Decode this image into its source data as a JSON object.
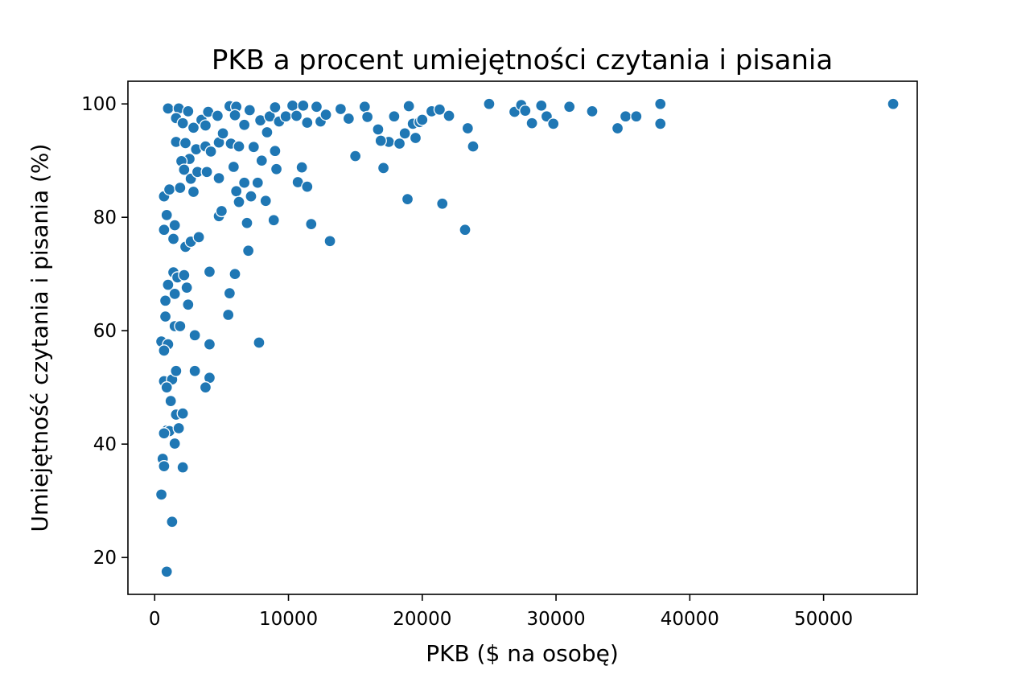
{
  "chart_data": {
    "type": "scatter",
    "title": "PKB a procent umiejętności czytania i pisania",
    "xlabel": "PKB ($ na osobę)",
    "ylabel": "Umiejętność czytania i pisania (%)",
    "xlim": [
      -2000,
      57000
    ],
    "ylim": [
      13.5,
      104
    ],
    "xticks": [
      0,
      10000,
      20000,
      30000,
      40000,
      50000
    ],
    "yticks": [
      20,
      40,
      60,
      80,
      100
    ],
    "xtick_labels": [
      "0",
      "10000",
      "20000",
      "30000",
      "40000",
      "50000"
    ],
    "ytick_labels": [
      "20",
      "40",
      "60",
      "80",
      "100"
    ],
    "grid": false,
    "legend": false,
    "color": "#1f77b4",
    "series": [
      {
        "points": [
          [
            1000,
            99.2
          ],
          [
            1800,
            99.2
          ],
          [
            2500,
            98.7
          ],
          [
            1600,
            97.5
          ],
          [
            2100,
            96.6
          ],
          [
            2900,
            95.8
          ],
          [
            3500,
            97.2
          ],
          [
            4000,
            98.6
          ],
          [
            3800,
            96.2
          ],
          [
            4700,
            97.9
          ],
          [
            5600,
            99.6
          ],
          [
            6100,
            99.5
          ],
          [
            6000,
            98.0
          ],
          [
            6700,
            96.3
          ],
          [
            7100,
            98.9
          ],
          [
            7900,
            97.1
          ],
          [
            8400,
            95.0
          ],
          [
            8600,
            97.8
          ],
          [
            9000,
            99.4
          ],
          [
            9300,
            96.9
          ],
          [
            9800,
            97.8
          ],
          [
            10300,
            99.7
          ],
          [
            10600,
            97.9
          ],
          [
            11100,
            99.7
          ],
          [
            11400,
            96.7
          ],
          [
            12100,
            99.5
          ],
          [
            12400,
            96.9
          ],
          [
            12800,
            98.1
          ],
          [
            13900,
            99.1
          ],
          [
            14500,
            97.4
          ],
          [
            15700,
            99.5
          ],
          [
            15900,
            97.7
          ],
          [
            16700,
            95.5
          ],
          [
            17500,
            93.3
          ],
          [
            17900,
            97.8
          ],
          [
            18300,
            93.0
          ],
          [
            19000,
            99.6
          ],
          [
            19300,
            96.5
          ],
          [
            19800,
            96.8
          ],
          [
            20000,
            97.2
          ],
          [
            20700,
            98.7
          ],
          [
            21300,
            99.0
          ],
          [
            22000,
            97.9
          ],
          [
            23400,
            95.7
          ],
          [
            25000,
            100
          ],
          [
            26900,
            98.6
          ],
          [
            27400,
            99.8
          ],
          [
            27700,
            98.8
          ],
          [
            28200,
            96.6
          ],
          [
            28900,
            99.7
          ],
          [
            29300,
            97.8
          ],
          [
            29800,
            96.5
          ],
          [
            31000,
            99.5
          ],
          [
            32700,
            98.7
          ],
          [
            34600,
            95.7
          ],
          [
            35200,
            97.8
          ],
          [
            36000,
            97.8
          ],
          [
            37800,
            100
          ],
          [
            37800,
            96.5
          ],
          [
            55200,
            100
          ],
          [
            1600,
            93.3
          ],
          [
            2300,
            93.1
          ],
          [
            3100,
            92.0
          ],
          [
            3800,
            92.5
          ],
          [
            4200,
            91.6
          ],
          [
            4800,
            93.2
          ],
          [
            5100,
            94.8
          ],
          [
            5700,
            93.0
          ],
          [
            6300,
            92.5
          ],
          [
            7400,
            92.4
          ],
          [
            9000,
            91.7
          ],
          [
            2600,
            90.3
          ],
          [
            2000,
            89.9
          ],
          [
            2200,
            88.4
          ],
          [
            2700,
            86.8
          ],
          [
            3200,
            88.0
          ],
          [
            3900,
            88.0
          ],
          [
            4800,
            86.9
          ],
          [
            5900,
            88.9
          ],
          [
            8000,
            90.0
          ],
          [
            9100,
            88.5
          ],
          [
            11000,
            88.8
          ],
          [
            15000,
            90.8
          ],
          [
            16900,
            93.5
          ],
          [
            17100,
            88.7
          ],
          [
            18700,
            94.8
          ],
          [
            19500,
            94.0
          ],
          [
            23800,
            92.5
          ],
          [
            700,
            83.7
          ],
          [
            1100,
            84.9
          ],
          [
            1900,
            85.2
          ],
          [
            2900,
            84.5
          ],
          [
            6100,
            84.6
          ],
          [
            6700,
            86.1
          ],
          [
            7200,
            83.7
          ],
          [
            7700,
            86.1
          ],
          [
            8300,
            82.9
          ],
          [
            10700,
            86.2
          ],
          [
            11400,
            85.4
          ],
          [
            6300,
            82.7
          ],
          [
            18900,
            83.2
          ],
          [
            21500,
            82.4
          ],
          [
            4800,
            80.2
          ],
          [
            5000,
            81.1
          ],
          [
            6900,
            79.0
          ],
          [
            8900,
            79.5
          ],
          [
            900,
            80.4
          ],
          [
            1500,
            78.6
          ],
          [
            700,
            77.8
          ],
          [
            1400,
            76.2
          ],
          [
            2300,
            74.8
          ],
          [
            2700,
            75.7
          ],
          [
            3300,
            76.5
          ],
          [
            11700,
            78.8
          ],
          [
            13100,
            75.8
          ],
          [
            23200,
            77.8
          ],
          [
            7000,
            74.1
          ],
          [
            1400,
            70.3
          ],
          [
            1700,
            69.4
          ],
          [
            2200,
            69.8
          ],
          [
            1000,
            68.1
          ],
          [
            1500,
            66.5
          ],
          [
            2400,
            67.6
          ],
          [
            800,
            65.3
          ],
          [
            2500,
            64.6
          ],
          [
            4100,
            70.4
          ],
          [
            5600,
            66.6
          ],
          [
            6000,
            70.0
          ],
          [
            5500,
            62.8
          ],
          [
            800,
            62.5
          ],
          [
            1500,
            60.8
          ],
          [
            1900,
            60.8
          ],
          [
            500,
            58.1
          ],
          [
            1000,
            57.6
          ],
          [
            700,
            56.5
          ],
          [
            3000,
            59.2
          ],
          [
            4100,
            57.6
          ],
          [
            7800,
            57.9
          ],
          [
            700,
            51.1
          ],
          [
            1300,
            51.4
          ],
          [
            900,
            50.0
          ],
          [
            1600,
            52.9
          ],
          [
            3000,
            52.9
          ],
          [
            4100,
            51.7
          ],
          [
            3800,
            50.0
          ],
          [
            1200,
            47.6
          ],
          [
            1600,
            45.2
          ],
          [
            2100,
            45.4
          ],
          [
            900,
            42.4
          ],
          [
            1100,
            42.3
          ],
          [
            1800,
            42.8
          ],
          [
            700,
            41.9
          ],
          [
            1500,
            40.1
          ],
          [
            600,
            37.4
          ],
          [
            700,
            36.1
          ],
          [
            2100,
            35.9
          ],
          [
            500,
            31.1
          ],
          [
            1300,
            26.3
          ],
          [
            900,
            17.5
          ]
        ]
      }
    ]
  }
}
